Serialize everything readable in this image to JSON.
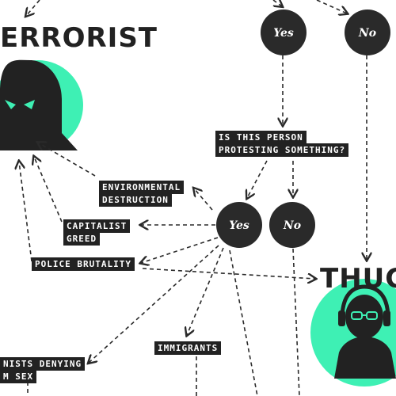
{
  "titles": {
    "terrorist": "ERRORIST",
    "thug": "THUG"
  },
  "nodes": {
    "top_yes": "Yes",
    "top_no": "No",
    "mid_yes": "Yes",
    "mid_no": "No"
  },
  "question": {
    "line1": "IS THIS PERSON",
    "line2": "PROTESTING SOMETHING?"
  },
  "causes": {
    "environmental_line1": "ENVIRONMENTAL",
    "environmental_line2": "DESTRUCTION",
    "capitalist_line1": "CAPITALIST",
    "capitalist_line2": "GREED",
    "police": "POLICE BRUTALITY",
    "immigrants": "IMMIGRANTS",
    "denying_line1": "NISTS DENYING",
    "denying_line2": "M SEX"
  },
  "colors": {
    "accent": "#3ef0b4",
    "dark": "#222222"
  },
  "icons": [
    "hooded-terrorist-icon",
    "thug-headphones-icon"
  ]
}
